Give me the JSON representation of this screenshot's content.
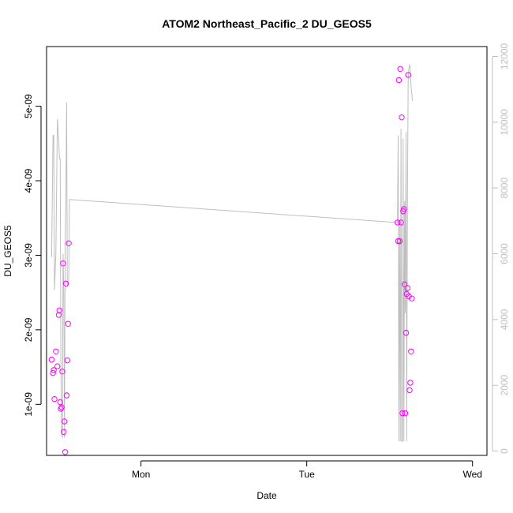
{
  "chart_data": {
    "type": "scatter",
    "title": "ATOM2 Northeast_Pacific_2 DU_GEOS5",
    "xlabel": "Date",
    "ylabel": "DU_GEOS5",
    "x_unit": "days since Sunday 00:00",
    "xlim": [
      0.7152,
      2.0435
    ],
    "ylim": [
      3.15e-10,
      5.8e-09
    ],
    "y2lim": [
      -130,
      12300
    ],
    "x_ticks": [
      {
        "value": 1,
        "label": "Mon"
      },
      {
        "value": 1.5,
        "label": "Tue"
      },
      {
        "value": 2,
        "label": "Wed"
      }
    ],
    "y_ticks": [
      {
        "value": 1e-09,
        "label": "1e-09"
      },
      {
        "value": 2e-09,
        "label": "2e-09"
      },
      {
        "value": 3e-09,
        "label": "3e-09"
      },
      {
        "value": 4e-09,
        "label": "4e-09"
      },
      {
        "value": 5e-09,
        "label": "5e-09"
      }
    ],
    "y2_ticks": [
      {
        "value": 0,
        "label": "0"
      },
      {
        "value": 2000,
        "label": "2000"
      },
      {
        "value": 4000,
        "label": "4000"
      },
      {
        "value": 6000,
        "label": "6000"
      },
      {
        "value": 8000,
        "label": "8000"
      },
      {
        "value": 10000,
        "label": "10000"
      },
      {
        "value": 12000,
        "label": "12000"
      }
    ],
    "series": [
      {
        "name": "DU_GEOS5",
        "kind": "points",
        "axis": "left",
        "color": "#ff00ff",
        "x": [
          0.7305,
          0.7348,
          0.7369,
          0.7391,
          0.7434,
          0.7477,
          0.752,
          0.7541,
          0.7563,
          0.7584,
          0.7606,
          0.7627,
          0.7649,
          0.767,
          0.7692,
          0.7714,
          0.7735,
          0.7757,
          0.7778,
          0.78,
          0.7821,
          1.7736,
          1.7757,
          1.7779,
          1.78,
          1.7822,
          1.7843,
          1.7865,
          1.7886,
          1.7908,
          1.7929,
          1.7951,
          1.7972,
          1.7994,
          1.8015,
          1.8037,
          1.8059,
          1.808,
          1.8102,
          1.8123,
          1.8145,
          1.8166
        ],
        "y": [
          1.6e-09,
          1.42e-09,
          1.46e-09,
          1.07e-09,
          1.71e-09,
          1.51e-09,
          2.2e-09,
          2.26e-09,
          1.03e-09,
          9.4e-10,
          9.6e-10,
          1.44e-09,
          2.89e-09,
          6.3e-10,
          7.7e-10,
          3.6e-10,
          2.62e-09,
          1.12e-09,
          1.59e-09,
          2.08e-09,
          3.16e-09,
          3.44e-09,
          3.19e-09,
          5.35e-09,
          3.19e-09,
          5.5e-09,
          3.44e-09,
          4.85e-09,
          8.8e-10,
          3.59e-09,
          3.62e-09,
          2.61e-09,
          8.8e-10,
          1.96e-09,
          2.48e-09,
          2.56e-09,
          5.42e-09,
          2.45e-09,
          1.19e-09,
          1.29e-09,
          1.71e-09,
          2.42e-09
        ]
      },
      {
        "name": "altitude",
        "kind": "line",
        "axis": "right",
        "color": "#bebebe",
        "x": [
          0.7305,
          0.7348,
          0.7369,
          0.7391,
          0.7434,
          0.7477,
          0.752,
          0.7541,
          0.7563,
          0.7584,
          0.7606,
          0.7627,
          0.7649,
          0.767,
          0.7692,
          0.7714,
          0.7735,
          0.7757,
          0.7778,
          0.78,
          0.7821,
          0.7843,
          1.7736,
          1.7757,
          1.7779,
          1.78,
          1.7822,
          1.7843,
          1.7865,
          1.7886,
          1.7908,
          1.7929,
          1.7951,
          1.7972,
          1.7994,
          1.8015,
          1.8037,
          1.8059,
          1.808,
          1.8102,
          1.8123,
          1.8145,
          1.8166,
          1.8188
        ],
        "y": [
          5900,
          9600,
          9600,
          4900,
          6000,
          10100,
          9400,
          8900,
          8900,
          2700,
          500,
          400,
          6000,
          4900,
          400,
          6500,
          7700,
          10600,
          5000,
          5100,
          5200,
          7650,
          6950,
          9600,
          300,
          7000,
          300,
          9800,
          300,
          300,
          9500,
          300,
          7600,
          4200,
          9700,
          300,
          7800,
          11300,
          11650,
          11750,
          11600,
          11100,
          10900,
          10650
        ]
      }
    ]
  }
}
